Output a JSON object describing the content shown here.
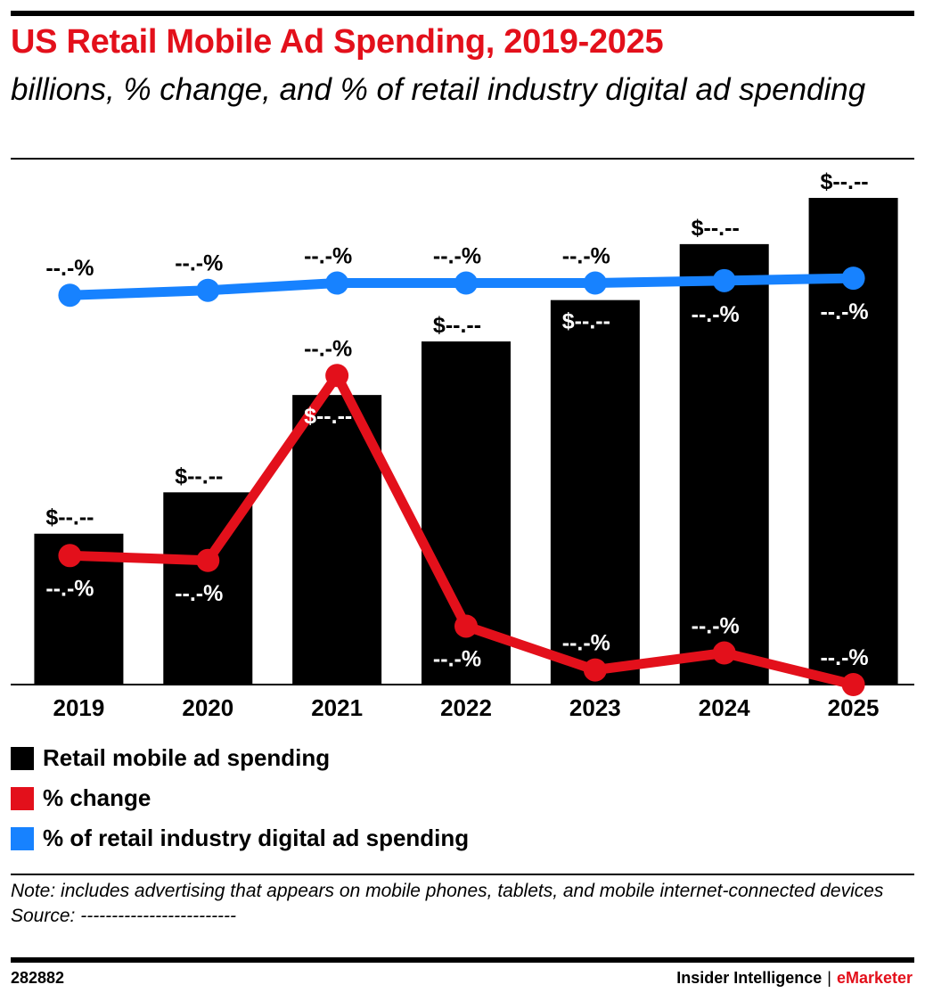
{
  "title": "US Retail Mobile Ad Spending, 2019-2025",
  "subtitle": "billions, % change, and % of retail industry digital ad spending",
  "chart_data": {
    "type": "bar",
    "categories": [
      "2019",
      "2020",
      "2021",
      "2022",
      "2023",
      "2024",
      "2025"
    ],
    "ylim": [
      0,
      100
    ],
    "series": [
      {
        "name": "Retail mobile ad spending",
        "kind": "bar",
        "color": "#000000",
        "values": [
          31,
          39.5,
          59.5,
          70.5,
          79,
          90.5,
          100
        ],
        "labels": [
          "$--.--",
          "$--.--",
          "$--.--",
          "$--.--",
          "$--.--",
          "$--.--",
          "$--.--"
        ]
      },
      {
        "name": "% change",
        "kind": "line",
        "color": "#e3101b",
        "values": [
          26.5,
          25.5,
          63.5,
          12,
          3,
          6.5,
          0
        ],
        "labels": [
          "--.-%",
          "--.-%",
          "--.-%",
          "--.-%",
          "--.-%",
          "--.-%",
          "--.-%"
        ]
      },
      {
        "name": "% of retail industry digital ad spending",
        "kind": "line",
        "color": "#1782ff",
        "values": [
          80,
          81,
          82.5,
          82.5,
          82.5,
          83,
          83.5
        ],
        "labels": [
          "--.-%",
          "--.-%",
          "--.-%",
          "--.-%",
          "--.-%",
          "--.-%",
          "--.-%"
        ]
      }
    ],
    "legend_position": "bottom-left",
    "grid": false
  },
  "note": "Note: includes advertising that appears on mobile phones, tablets, and mobile internet-connected devices",
  "source": "Source: -------------------------",
  "chart_id": "282882",
  "brand": {
    "left": "Insider Intelligence",
    "separator": "|",
    "right": "eMarketer"
  }
}
